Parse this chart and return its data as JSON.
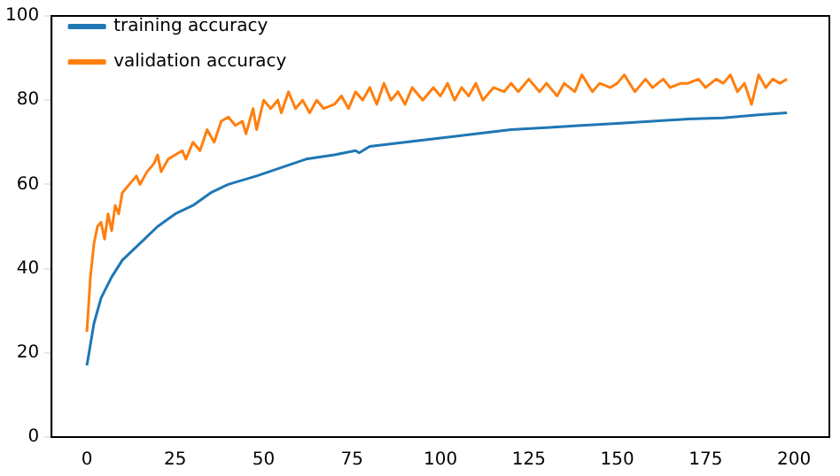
{
  "chart_data": {
    "type": "line",
    "xlim": [
      -10,
      210
    ],
    "ylim": [
      0,
      100
    ],
    "xticks": [
      0,
      25,
      50,
      75,
      100,
      125,
      150,
      175,
      200
    ],
    "yticks": [
      0,
      20,
      40,
      60,
      80,
      100
    ],
    "legend": "top left",
    "grid": false,
    "series": [
      {
        "name": "training accuracy",
        "color": "#1f77b4",
        "x": [
          0,
          2,
          4,
          7,
          10,
          15,
          20,
          25,
          30,
          35,
          40,
          48,
          55,
          62,
          70,
          76,
          77,
          80,
          90,
          100,
          110,
          120,
          130,
          140,
          150,
          160,
          170,
          180,
          190,
          198
        ],
        "values": [
          17,
          27,
          33,
          38,
          42,
          46,
          50,
          53,
          55,
          58,
          60,
          62,
          64,
          66,
          67,
          68,
          67.5,
          69,
          70,
          71,
          72,
          73,
          73.5,
          74,
          74.5,
          75,
          75.5,
          75.8,
          76.5,
          77
        ]
      },
      {
        "name": "validation accuracy",
        "color": "#ff7f0e",
        "x": [
          0,
          1,
          2,
          3,
          4,
          5,
          6,
          7,
          8,
          9,
          10,
          12,
          14,
          15,
          17,
          19,
          20,
          21,
          23,
          25,
          27,
          28,
          30,
          32,
          34,
          36,
          38,
          40,
          42,
          44,
          45,
          47,
          48,
          50,
          52,
          54,
          55,
          57,
          59,
          61,
          63,
          65,
          67,
          70,
          72,
          74,
          76,
          78,
          80,
          82,
          84,
          86,
          88,
          90,
          92,
          95,
          98,
          100,
          102,
          104,
          106,
          108,
          110,
          112,
          115,
          118,
          120,
          122,
          125,
          128,
          130,
          133,
          135,
          138,
          140,
          143,
          145,
          148,
          150,
          152,
          155,
          158,
          160,
          163,
          165,
          168,
          170,
          173,
          175,
          178,
          180,
          182,
          184,
          186,
          188,
          190,
          192,
          194,
          196,
          198
        ],
        "values": [
          25,
          38,
          46,
          50,
          51,
          47,
          53,
          49,
          55,
          53,
          58,
          60,
          62,
          60,
          63,
          65,
          67,
          63,
          66,
          67,
          68,
          66,
          70,
          68,
          73,
          70,
          75,
          76,
          74,
          75,
          72,
          78,
          73,
          80,
          78,
          80,
          77,
          82,
          78,
          80,
          77,
          80,
          78,
          79,
          81,
          78,
          82,
          80,
          83,
          79,
          84,
          80,
          82,
          79,
          83,
          80,
          83,
          81,
          84,
          80,
          83,
          81,
          84,
          80,
          83,
          82,
          84,
          82,
          85,
          82,
          84,
          81,
          84,
          82,
          86,
          82,
          84,
          83,
          84,
          86,
          82,
          85,
          83,
          85,
          83,
          84,
          84,
          85,
          83,
          85,
          84,
          86,
          82,
          84,
          79,
          86,
          83,
          85,
          84,
          85
        ]
      }
    ]
  }
}
